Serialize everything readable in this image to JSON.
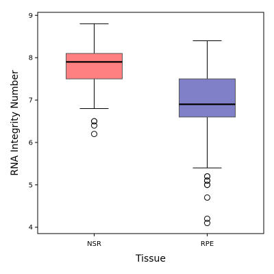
{
  "chart_data": {
    "type": "box",
    "xlabel": "Tissue",
    "ylabel": "RNA Integrity Number",
    "ylim": [
      3.85,
      9.07
    ],
    "yticks": [
      4,
      5,
      6,
      7,
      8,
      9
    ],
    "grid": false,
    "categories": [
      "NSR",
      "RPE"
    ],
    "series": [
      {
        "category": "NSR",
        "color": "#ff8080",
        "q1": 7.5,
        "median": 7.9,
        "q3": 8.1,
        "whisker_low": 6.8,
        "whisker_high": 8.8,
        "outliers": [
          6.5,
          6.5,
          6.4,
          6.2
        ]
      },
      {
        "category": "RPE",
        "color": "#8080c8",
        "q1": 6.6,
        "median": 6.9,
        "q3": 7.5,
        "whisker_low": 5.4,
        "whisker_high": 8.4,
        "outliers": [
          5.2,
          5.2,
          5.1,
          5.1,
          5.0,
          5.0,
          4.7,
          4.2,
          4.1
        ]
      }
    ]
  }
}
